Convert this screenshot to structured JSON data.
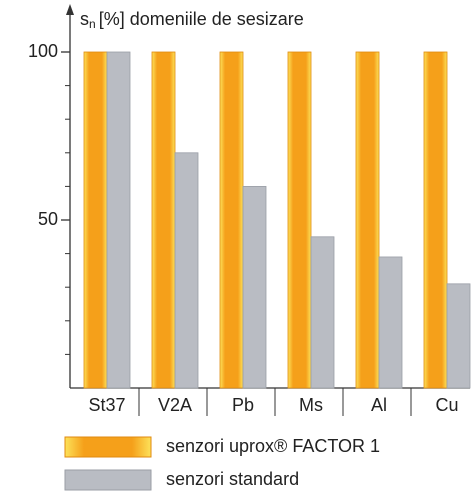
{
  "chart_data": {
    "type": "bar",
    "y_label_symbol": "s",
    "y_label_subscript": "n",
    "y_label_text": "[%] domeniile de sesizare",
    "categories": [
      "St37",
      "V2A",
      "Pb",
      "Ms",
      "Al",
      "Cu"
    ],
    "series": [
      {
        "name": "senzori uprox® FACTOR 1",
        "color": "#f5a01a",
        "values": [
          100,
          100,
          100,
          100,
          100,
          100
        ]
      },
      {
        "name": "senzori standard",
        "color": "#b9bcc3",
        "values": [
          100,
          70,
          60,
          45,
          39,
          31
        ]
      }
    ],
    "ylim": [
      0,
      100
    ],
    "yticks": [
      50,
      100
    ],
    "minor_yticks": [
      10,
      20,
      30,
      40,
      60,
      70,
      80,
      90
    ]
  }
}
